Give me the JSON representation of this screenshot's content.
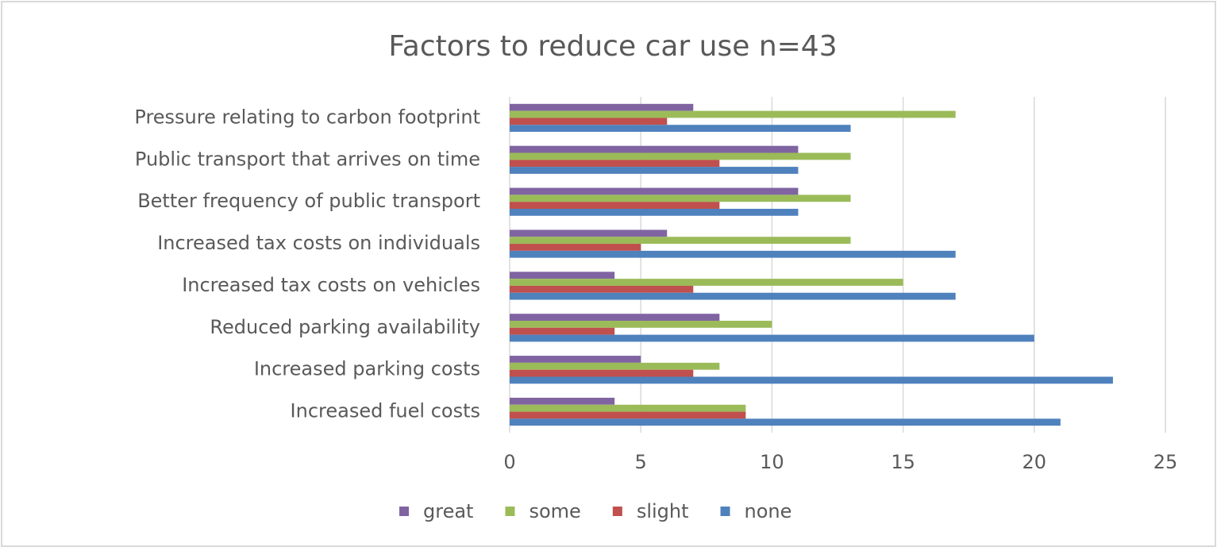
{
  "chart_data": {
    "type": "bar",
    "orientation": "horizontal",
    "title": "Factors to reduce car use n=43",
    "categories": [
      "Increased fuel costs",
      "Increased parking costs",
      "Reduced parking availability",
      "Increased tax costs on vehicles",
      "Increased tax costs on individuals",
      "Better frequency of public transport",
      "Public transport that arrives on time",
      "Pressure relating to carbon footprint"
    ],
    "series": [
      {
        "name": "great",
        "color": "#8064a2",
        "values": [
          4,
          5,
          8,
          4,
          6,
          11,
          11,
          7
        ]
      },
      {
        "name": "some",
        "color": "#9bbb59",
        "values": [
          9,
          8,
          10,
          15,
          13,
          13,
          13,
          17
        ]
      },
      {
        "name": "slight",
        "color": "#c0504d",
        "values": [
          9,
          7,
          4,
          7,
          5,
          8,
          8,
          6
        ]
      },
      {
        "name": "none",
        "color": "#4f81bd",
        "values": [
          21,
          23,
          20,
          17,
          17,
          11,
          11,
          13
        ]
      }
    ],
    "xlim": [
      0,
      25
    ],
    "xticks": [
      0,
      5,
      10,
      15,
      20,
      25
    ],
    "grid": true,
    "legend": "bottom"
  }
}
